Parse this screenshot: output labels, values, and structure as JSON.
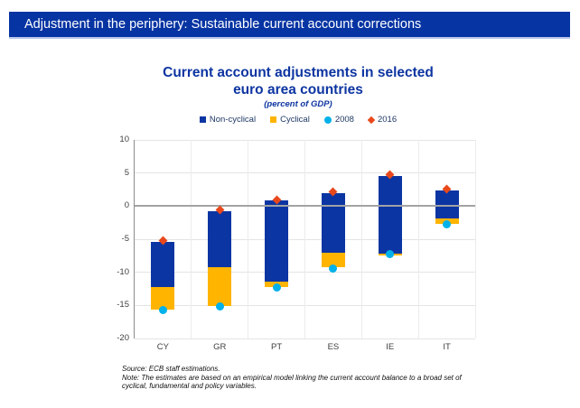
{
  "header": {
    "title": "Adjustment in the periphery: Sustainable current account corrections"
  },
  "chart": {
    "title_line1": "Current account adjustments in selected",
    "title_line2": "euro area countries",
    "subtitle": "(percent of GDP)"
  },
  "footnotes": {
    "lines": [
      "Source: ECB staff estimations.",
      "Note: The estimates are based on an empirical model linking the current account balance to a broad set of",
      "cyclical, fundamental and policy variables."
    ]
  },
  "colors": {
    "header_bg": "#0634a3",
    "header_underline": "#b9c5ea",
    "title_text": "#0d35a1",
    "bar_non_cyclical": "#0b35a3",
    "bar_cyclical": "#ffb400",
    "dot_2008": "#00b1ea",
    "dot_2016": "#e8481c",
    "gridline": "#e4e4e4",
    "zero_line": "#a3a3a3",
    "axis_line": "#8c8c8c",
    "axis_label_text": "#3f3f3f",
    "legend_text": "#1f3864"
  },
  "chart_data": {
    "type": "bar",
    "stacked": true,
    "title": "Current account adjustments in selected euro area countries",
    "subtitle": "(percent of GDP)",
    "ylabel": "percent of GDP",
    "ylim": [
      -20,
      10
    ],
    "yticks": [
      10,
      5,
      0,
      -5,
      -10,
      -15,
      -20
    ],
    "grid": true,
    "legend_position": "top-center",
    "categories": [
      "CY",
      "GR",
      "PT",
      "ES",
      "IE",
      "IT"
    ],
    "series": [
      {
        "name": "Non-cyclical",
        "type": "bar-segment",
        "marker": "square",
        "color": "#0b35a3",
        "segments": [
          [
            -5.4,
            -12.2
          ],
          [
            -0.8,
            -9.2
          ],
          [
            0.9,
            -11.4
          ],
          [
            2.0,
            -7.0
          ],
          [
            4.5,
            -7.2
          ],
          [
            2.4,
            -1.8
          ]
        ]
      },
      {
        "name": "Cyclical",
        "type": "bar-segment",
        "marker": "square",
        "color": "#ffb400",
        "segments": [
          [
            -12.2,
            -15.6
          ],
          [
            -9.2,
            -15.1
          ],
          [
            -11.4,
            -12.2
          ],
          [
            -7.0,
            -9.2
          ],
          [
            -7.2,
            -7.5
          ],
          [
            -1.8,
            -2.7
          ]
        ]
      },
      {
        "name": "2008",
        "type": "point",
        "marker": "circle",
        "color": "#00b1ea",
        "values": [
          -15.7,
          -15.2,
          -12.3,
          -9.4,
          -7.2,
          -2.8
        ]
      },
      {
        "name": "2016",
        "type": "point",
        "marker": "diamond",
        "color": "#e8481c",
        "values": [
          -5.2,
          -0.6,
          1.0,
          2.1,
          4.7,
          2.6
        ]
      }
    ]
  }
}
